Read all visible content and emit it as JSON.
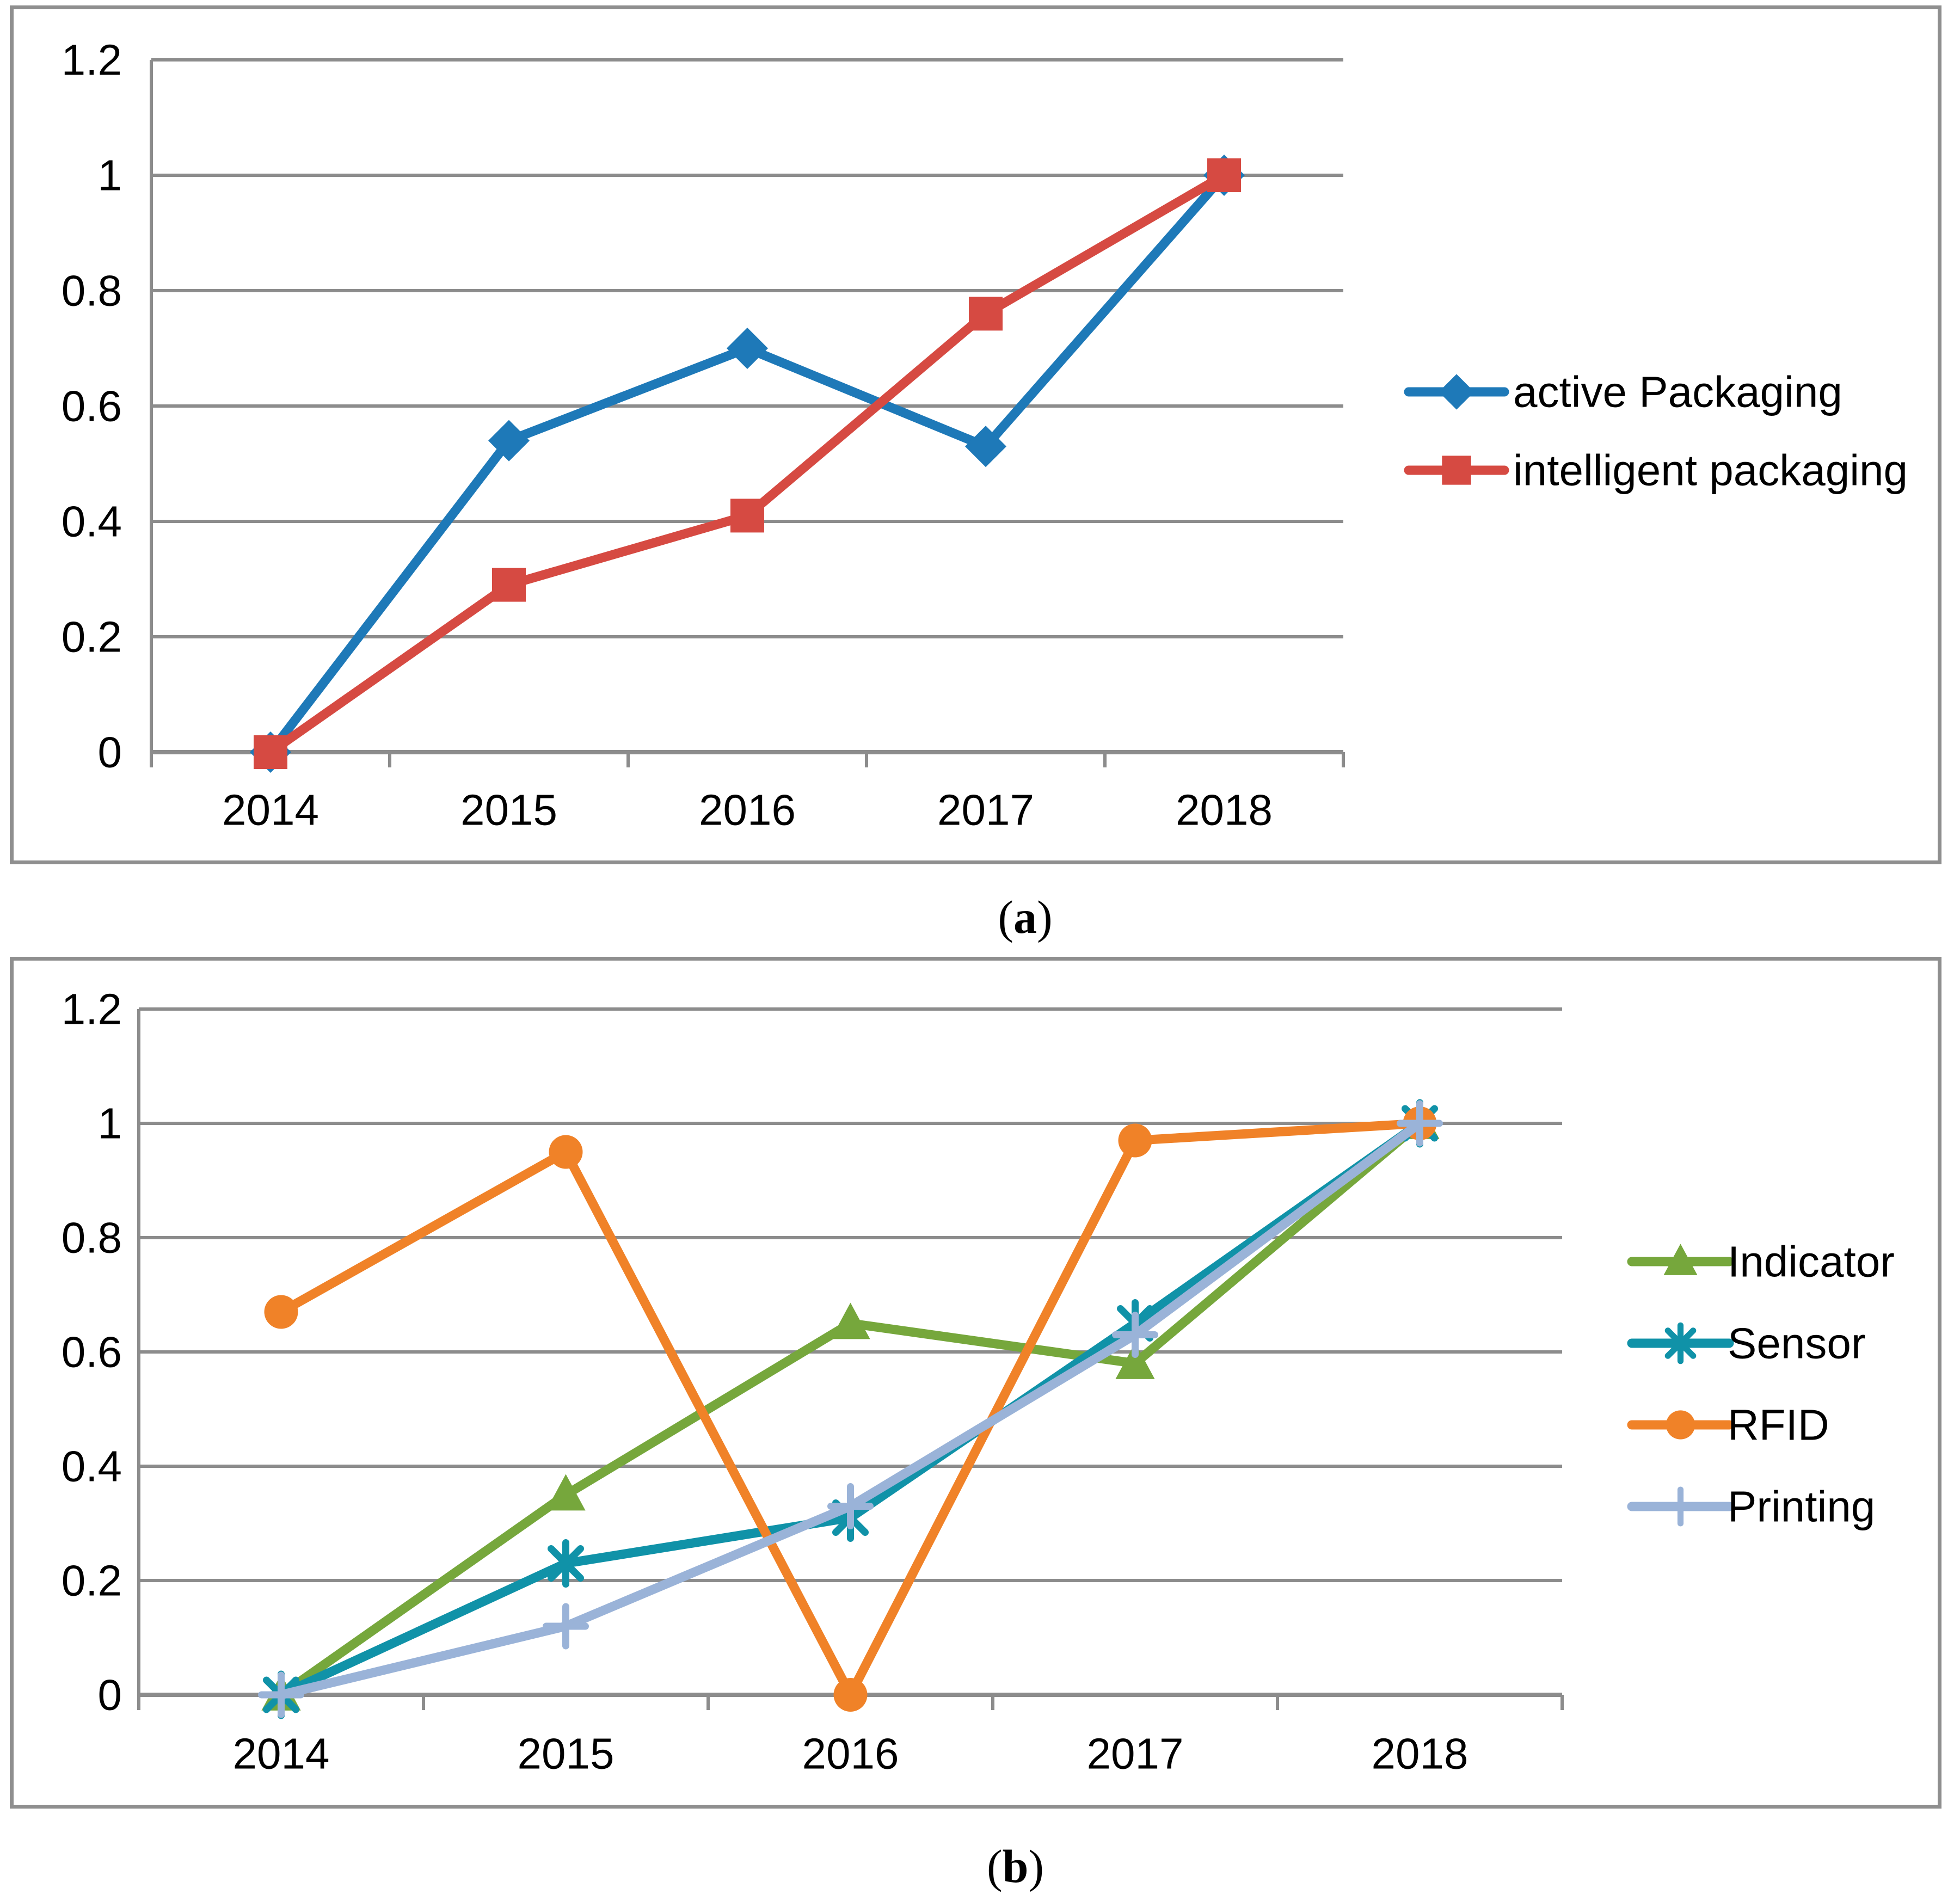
{
  "captions": {
    "a": {
      "open": "(",
      "letter": "a",
      "close": ")"
    },
    "b": {
      "open": "(",
      "letter": "b",
      "close": ")"
    }
  },
  "styles": {
    "background": "#FFFFFF",
    "grid_color": "#8C8C8C",
    "axis_color": "#8C8C8C",
    "panel_border_color": "#8F8F8F",
    "text_color": "#000000"
  },
  "chart_data": [
    {
      "type": "line",
      "panel": "a",
      "title": "",
      "xlabel": "",
      "ylabel": "",
      "categories": [
        "2014",
        "2015",
        "2016",
        "2017",
        "2018"
      ],
      "ylim": [
        0,
        1.2
      ],
      "yticks": [
        0,
        0.2,
        0.4,
        0.6,
        0.8,
        1,
        1.2
      ],
      "ytick_labels": [
        "0",
        "0.2",
        "0.4",
        "0.6",
        "0.8",
        "1",
        "1.2"
      ],
      "grid": true,
      "legend_position": "right",
      "series": [
        {
          "name": "active Packaging",
          "marker": "diamond",
          "color": "#1E79B8",
          "values": [
            0,
            0.54,
            0.7,
            0.53,
            1
          ]
        },
        {
          "name": "intelligent packaging",
          "marker": "square",
          "color": "#D64A42",
          "values": [
            0,
            0.29,
            0.41,
            0.76,
            1
          ]
        }
      ]
    },
    {
      "type": "line",
      "panel": "b",
      "title": "",
      "xlabel": "",
      "ylabel": "",
      "categories": [
        "2014",
        "2015",
        "2016",
        "2017",
        "2018"
      ],
      "ylim": [
        0,
        1.2
      ],
      "yticks": [
        0,
        0.2,
        0.4,
        0.6,
        0.8,
        1,
        1.2
      ],
      "ytick_labels": [
        "0",
        "0.2",
        "0.4",
        "0.6",
        "0.8",
        "1",
        "1.2"
      ],
      "grid": true,
      "legend_position": "right",
      "series": [
        {
          "name": "Indicator",
          "marker": "triangle",
          "color": "#76A73C",
          "values": [
            0,
            0.35,
            0.65,
            0.58,
            1
          ]
        },
        {
          "name": "Sensor",
          "marker": "star",
          "color": "#1092A8",
          "values": [
            0,
            0.23,
            0.31,
            0.65,
            1
          ]
        },
        {
          "name": "RFID",
          "marker": "circle",
          "color": "#F08228",
          "values": [
            0.67,
            0.95,
            0,
            0.97,
            1
          ]
        },
        {
          "name": "Printing",
          "marker": "plus",
          "color": "#9AB3D8",
          "values": [
            0,
            0.12,
            0.33,
            0.63,
            1
          ]
        }
      ]
    }
  ]
}
